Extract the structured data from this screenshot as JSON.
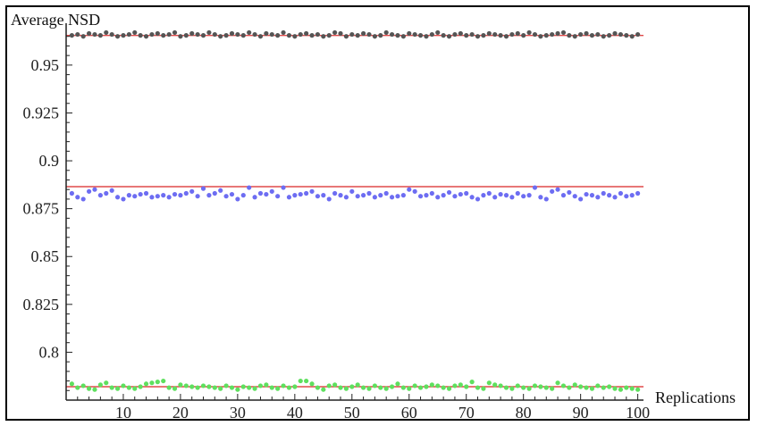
{
  "chart_data": {
    "type": "scatter",
    "ylabel": "Average NSD",
    "xlabel": "Replications",
    "xlim": [
      0,
      101
    ],
    "ylim": [
      0.775,
      0.97
    ],
    "x_ticks": [
      10,
      20,
      30,
      40,
      50,
      60,
      70,
      80,
      90,
      100
    ],
    "y_ticks": [
      0.8,
      0.825,
      0.85,
      0.875,
      0.9,
      0.925,
      0.95
    ],
    "y_tick_labels": [
      "0.8",
      "0.825",
      "0.85",
      "0.875",
      "0.9",
      "0.925",
      "0.95"
    ],
    "grid": false,
    "reference_lines": [
      {
        "y": 0.9655,
        "color": "#e04a4a"
      },
      {
        "y": 0.8865,
        "color": "#e04a4a"
      },
      {
        "y": 0.782,
        "color": "#e04a4a"
      }
    ],
    "series": [
      {
        "color": "#555555",
        "x": [
          1,
          2,
          3,
          4,
          5,
          6,
          7,
          8,
          9,
          10,
          11,
          12,
          13,
          14,
          15,
          16,
          17,
          18,
          19,
          20,
          21,
          22,
          23,
          24,
          25,
          26,
          27,
          28,
          29,
          30,
          31,
          32,
          33,
          34,
          35,
          36,
          37,
          38,
          39,
          40,
          41,
          42,
          43,
          44,
          45,
          46,
          47,
          48,
          49,
          50,
          51,
          52,
          53,
          54,
          55,
          56,
          57,
          58,
          59,
          60,
          61,
          62,
          63,
          64,
          65,
          66,
          67,
          68,
          69,
          70,
          71,
          72,
          73,
          74,
          75,
          76,
          77,
          78,
          79,
          80,
          81,
          82,
          83,
          84,
          85,
          86,
          87,
          88,
          89,
          90,
          91,
          92,
          93,
          94,
          95,
          96,
          97,
          98,
          99,
          100
        ],
        "values": [
          0.9655,
          0.966,
          0.965,
          0.9665,
          0.966,
          0.9655,
          0.967,
          0.966,
          0.965,
          0.9655,
          0.966,
          0.967,
          0.9655,
          0.965,
          0.966,
          0.9665,
          0.9655,
          0.966,
          0.967,
          0.965,
          0.9655,
          0.9665,
          0.966,
          0.9655,
          0.967,
          0.966,
          0.965,
          0.9655,
          0.9665,
          0.966,
          0.9655,
          0.967,
          0.966,
          0.965,
          0.9665,
          0.966,
          0.9655,
          0.967,
          0.9655,
          0.965,
          0.966,
          0.9665,
          0.9655,
          0.966,
          0.965,
          0.9655,
          0.967,
          0.9665,
          0.965,
          0.966,
          0.9655,
          0.9665,
          0.966,
          0.965,
          0.9655,
          0.967,
          0.966,
          0.9655,
          0.965,
          0.9665,
          0.966,
          0.9655,
          0.965,
          0.966,
          0.967,
          0.9655,
          0.965,
          0.966,
          0.9665,
          0.9655,
          0.966,
          0.965,
          0.9655,
          0.9665,
          0.966,
          0.9655,
          0.965,
          0.966,
          0.9665,
          0.9655,
          0.967,
          0.966,
          0.965,
          0.9655,
          0.966,
          0.9665,
          0.967,
          0.9655,
          0.965,
          0.966,
          0.9665,
          0.9655,
          0.966,
          0.965,
          0.9655,
          0.9665,
          0.966,
          0.9655,
          0.965,
          0.966
        ]
      },
      {
        "color": "#6d6df2",
        "x": [
          1,
          2,
          3,
          4,
          5,
          6,
          7,
          8,
          9,
          10,
          11,
          12,
          13,
          14,
          15,
          16,
          17,
          18,
          19,
          20,
          21,
          22,
          23,
          24,
          25,
          26,
          27,
          28,
          29,
          30,
          31,
          32,
          33,
          34,
          35,
          36,
          37,
          38,
          39,
          40,
          41,
          42,
          43,
          44,
          45,
          46,
          47,
          48,
          49,
          50,
          51,
          52,
          53,
          54,
          55,
          56,
          57,
          58,
          59,
          60,
          61,
          62,
          63,
          64,
          65,
          66,
          67,
          68,
          69,
          70,
          71,
          72,
          73,
          74,
          75,
          76,
          77,
          78,
          79,
          80,
          81,
          82,
          83,
          84,
          85,
          86,
          87,
          88,
          89,
          90,
          91,
          92,
          93,
          94,
          95,
          96,
          97,
          98,
          99,
          100
        ],
        "values": [
          0.883,
          0.881,
          0.88,
          0.884,
          0.885,
          0.882,
          0.883,
          0.8845,
          0.881,
          0.88,
          0.882,
          0.8815,
          0.8825,
          0.883,
          0.881,
          0.8815,
          0.882,
          0.881,
          0.8825,
          0.882,
          0.883,
          0.884,
          0.8815,
          0.8855,
          0.882,
          0.883,
          0.8845,
          0.8815,
          0.8825,
          0.88,
          0.882,
          0.886,
          0.881,
          0.883,
          0.8825,
          0.884,
          0.8815,
          0.886,
          0.881,
          0.882,
          0.8825,
          0.883,
          0.884,
          0.8815,
          0.882,
          0.88,
          0.883,
          0.882,
          0.881,
          0.884,
          0.8815,
          0.882,
          0.883,
          0.881,
          0.882,
          0.883,
          0.881,
          0.8815,
          0.882,
          0.885,
          0.884,
          0.8815,
          0.882,
          0.883,
          0.881,
          0.882,
          0.8835,
          0.8815,
          0.8825,
          0.883,
          0.881,
          0.88,
          0.882,
          0.883,
          0.881,
          0.8825,
          0.882,
          0.881,
          0.883,
          0.8815,
          0.882,
          0.886,
          0.881,
          0.88,
          0.884,
          0.885,
          0.882,
          0.8835,
          0.8815,
          0.88,
          0.8825,
          0.882,
          0.881,
          0.883,
          0.882,
          0.881,
          0.883,
          0.8815,
          0.882,
          0.883
        ]
      },
      {
        "color": "#5ee05e",
        "x": [
          1,
          2,
          3,
          4,
          5,
          6,
          7,
          8,
          9,
          10,
          11,
          12,
          13,
          14,
          15,
          16,
          17,
          18,
          19,
          20,
          21,
          22,
          23,
          24,
          25,
          26,
          27,
          28,
          29,
          30,
          31,
          32,
          33,
          34,
          35,
          36,
          37,
          38,
          39,
          40,
          41,
          42,
          43,
          44,
          45,
          46,
          47,
          48,
          49,
          50,
          51,
          52,
          53,
          54,
          55,
          56,
          57,
          58,
          59,
          60,
          61,
          62,
          63,
          64,
          65,
          66,
          67,
          68,
          69,
          70,
          71,
          72,
          73,
          74,
          75,
          76,
          77,
          78,
          79,
          80,
          81,
          82,
          83,
          84,
          85,
          86,
          87,
          88,
          89,
          90,
          91,
          92,
          93,
          94,
          95,
          96,
          97,
          98,
          99,
          100
        ],
        "values": [
          0.7835,
          0.7815,
          0.7825,
          0.781,
          0.7805,
          0.783,
          0.784,
          0.7815,
          0.781,
          0.7825,
          0.7815,
          0.781,
          0.782,
          0.7835,
          0.784,
          0.7845,
          0.785,
          0.7815,
          0.781,
          0.783,
          0.7825,
          0.782,
          0.7815,
          0.7825,
          0.782,
          0.7815,
          0.781,
          0.7825,
          0.7815,
          0.7805,
          0.782,
          0.7815,
          0.781,
          0.7825,
          0.783,
          0.7815,
          0.781,
          0.7825,
          0.7815,
          0.782,
          0.785,
          0.785,
          0.7835,
          0.7815,
          0.7805,
          0.7825,
          0.783,
          0.7815,
          0.781,
          0.782,
          0.783,
          0.7815,
          0.781,
          0.7825,
          0.7815,
          0.781,
          0.782,
          0.7835,
          0.7815,
          0.781,
          0.7825,
          0.7815,
          0.782,
          0.783,
          0.7825,
          0.7815,
          0.781,
          0.7825,
          0.783,
          0.782,
          0.7845,
          0.7815,
          0.781,
          0.784,
          0.783,
          0.7825,
          0.7815,
          0.781,
          0.7825,
          0.7815,
          0.781,
          0.7825,
          0.782,
          0.7815,
          0.781,
          0.784,
          0.7825,
          0.7815,
          0.783,
          0.782,
          0.7815,
          0.781,
          0.7825,
          0.7815,
          0.782,
          0.781,
          0.7805,
          0.7815,
          0.781,
          0.7805
        ]
      }
    ]
  }
}
